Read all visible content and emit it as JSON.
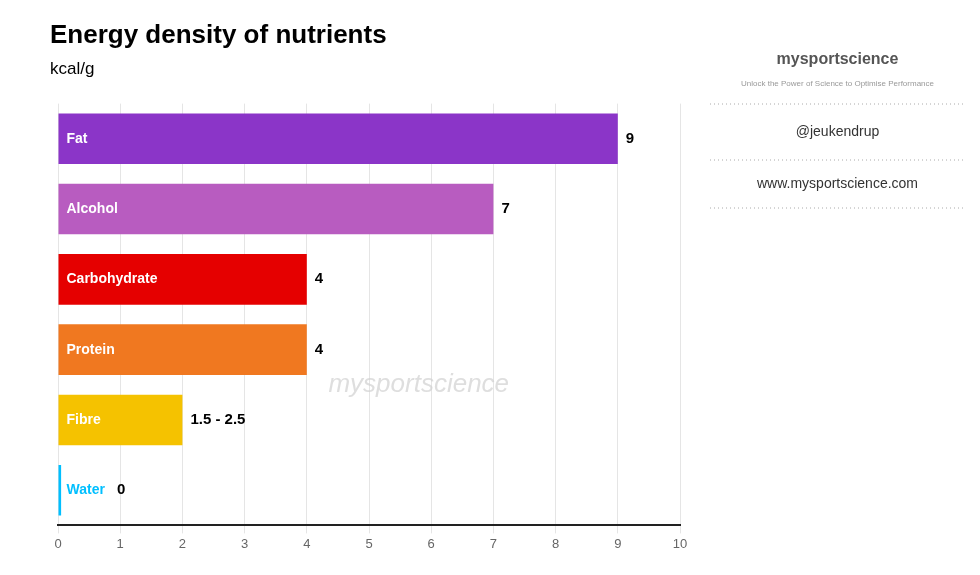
{
  "chart_data": {
    "type": "bar",
    "orientation": "horizontal",
    "title": "Energy density of nutrients",
    "subtitle": "kcal/g",
    "categories": [
      "Fat",
      "Alcohol",
      "Carbohydrate",
      "Protein",
      "Fibre",
      "Water"
    ],
    "values": [
      9,
      7,
      4,
      4,
      2.0,
      0.05
    ],
    "value_labels": [
      "9",
      "7",
      "4",
      "4",
      "1.5 - 2.5",
      "0"
    ],
    "data_labels": true,
    "colors": [
      "#8B35C8",
      "#B85CC0",
      "#E50000",
      "#F07820",
      "#F5C200",
      "#00BFFF"
    ],
    "xlim": [
      0,
      10
    ],
    "xticks": [
      0,
      1,
      2,
      3,
      4,
      5,
      6,
      7,
      8,
      9,
      10
    ],
    "grid": true,
    "tick_labels": "x",
    "annotations": [
      "mysportscience",
      "mysportscience",
      "Unlock the Power of Science to Optimise Performance",
      "@jeukendrup",
      "www.mysportscience.com"
    ]
  }
}
